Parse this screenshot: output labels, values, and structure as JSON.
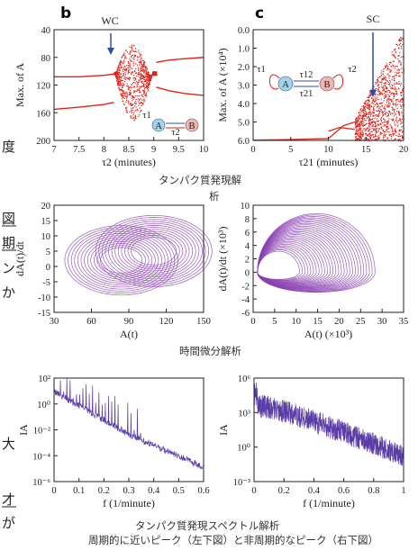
{
  "captions": {
    "protein_expression": "タンパク質発現解",
    "protein_expression_cont": "析",
    "time_derivative": "時間微分解析",
    "spectrum": "タンパク質発現スペクトル解析",
    "bottom": "周期的に近いピーク（左下図）と非周期的なピーク（右下図）"
  },
  "side_text": [
    "度",
    "図",
    "期",
    "ン",
    "か",
    "大",
    "才",
    "が"
  ],
  "panel_labels": {
    "b": "b",
    "c": "c"
  },
  "colors": {
    "red": "#d9261c",
    "purple": "#8a3fb0",
    "spectrum": "#5b3ba6",
    "arrow": "#2b4fa8",
    "nodeA": "#9fd3f0",
    "nodeB": "#f3b3b0"
  },
  "chart_data": [
    {
      "id": "b",
      "type": "scatter",
      "title": "",
      "annotation": "WC",
      "xlabel": "τ2 (minutes)",
      "ylabel": "Max. of A",
      "xlim": [
        7,
        10
      ],
      "ylim": [
        40,
        200
      ],
      "xticks": [
        "7",
        "7.5",
        "8",
        "8.5",
        "9",
        "9.5",
        "10"
      ],
      "yticks": [
        "40",
        "80",
        "120",
        "160",
        "200"
      ],
      "branches": [
        {
          "x": [
            7.0,
            7.5,
            8.0,
            8.2
          ],
          "y": [
            132,
            132,
            134,
            136
          ]
        },
        {
          "x": [
            7.0,
            7.5,
            8.0,
            8.2
          ],
          "y": [
            85,
            88,
            92,
            95
          ]
        },
        {
          "x": [
            9.05,
            9.3,
            9.6,
            10.0
          ],
          "y": [
            153,
            156,
            158,
            160
          ]
        },
        {
          "x": [
            9.05,
            9.3,
            9.6,
            10.0
          ],
          "y": [
            117,
            112,
            108,
            105
          ]
        }
      ],
      "chaotic_region": {
        "x": [
          8.2,
          9.05
        ],
        "y": [
          70,
          180
        ]
      },
      "diagram_nodes": [
        "A",
        "B"
      ],
      "diagram_labels": [
        "τ1",
        "τ2"
      ]
    },
    {
      "id": "c",
      "type": "scatter",
      "title": "",
      "annotation": "SC",
      "xlabel": "τ21 (minutes)",
      "ylabel": "Max. of A (×10⁴)",
      "xlim": [
        0,
        20
      ],
      "ylim": [
        0.0,
        6.0
      ],
      "xticks": [
        "0",
        "5",
        "10",
        "15",
        "20"
      ],
      "yticks": [
        "0.0",
        "1.0",
        "2.0",
        "3.0",
        "4.0",
        "5.0",
        "6.0"
      ],
      "branches": [
        {
          "x": [
            0,
            5,
            10,
            12,
            13.5
          ],
          "y": [
            0.02,
            0.05,
            0.1,
            0.8,
            1.0
          ]
        },
        {
          "x": [
            10,
            11.5,
            13.5
          ],
          "y": [
            0.5,
            0.7,
            0.6
          ]
        }
      ],
      "chaotic_region": {
        "x": [
          13.5,
          20
        ],
        "y": [
          0.0,
          6.0
        ]
      },
      "diagram_nodes": [
        "A",
        "B"
      ],
      "diagram_labels": [
        "τ1",
        "τ12",
        "τ21",
        "τ2"
      ]
    },
    {
      "id": "phase-left",
      "type": "line",
      "xlabel": "A(t)",
      "ylabel": "dA(t)/dt",
      "xlim": [
        30,
        150
      ],
      "ylim": [
        -15,
        20
      ],
      "xticks": [
        "30",
        "60",
        "90",
        "120",
        "150"
      ],
      "yticks": [
        "20",
        "15",
        "10",
        "5",
        "0",
        "-5",
        "-10",
        "-15"
      ]
    },
    {
      "id": "phase-right",
      "type": "line",
      "xlabel": "A(t) (×10³)",
      "ylabel": "dA(t)/dt (×10³)",
      "xlim": [
        0,
        35
      ],
      "ylim": [
        -6,
        10
      ],
      "xticks": [
        "0",
        "5",
        "10",
        "15",
        "20",
        "25",
        "30",
        "35"
      ],
      "yticks": [
        "10",
        "8",
        "6",
        "4",
        "2",
        "0",
        "-2",
        "-4",
        "-6"
      ]
    },
    {
      "id": "spectrum-left",
      "type": "line",
      "xlabel": "f (1/minute)",
      "ylabel": "IA",
      "xlim": [
        0,
        0.6
      ],
      "ylim_log10": [
        -6,
        2
      ],
      "xticks": [
        "0",
        "0.1",
        "0.2",
        "0.3",
        "0.4",
        "0.5",
        "0.6"
      ],
      "yticks": [
        "10²",
        "10⁰",
        "10⁻²",
        "10⁻⁴",
        "10⁻⁶"
      ]
    },
    {
      "id": "spectrum-right",
      "type": "line",
      "xlabel": "f (1/minute)",
      "ylabel": "IA",
      "xlim": [
        0,
        1
      ],
      "ylim_log10": [
        -4,
        6
      ],
      "xticks": [
        "0",
        "0.2",
        "0.4",
        "0.6",
        "0.8",
        "1"
      ],
      "yticks": [
        "10⁶",
        "10³",
        "10⁰",
        "10⁻³"
      ]
    }
  ]
}
